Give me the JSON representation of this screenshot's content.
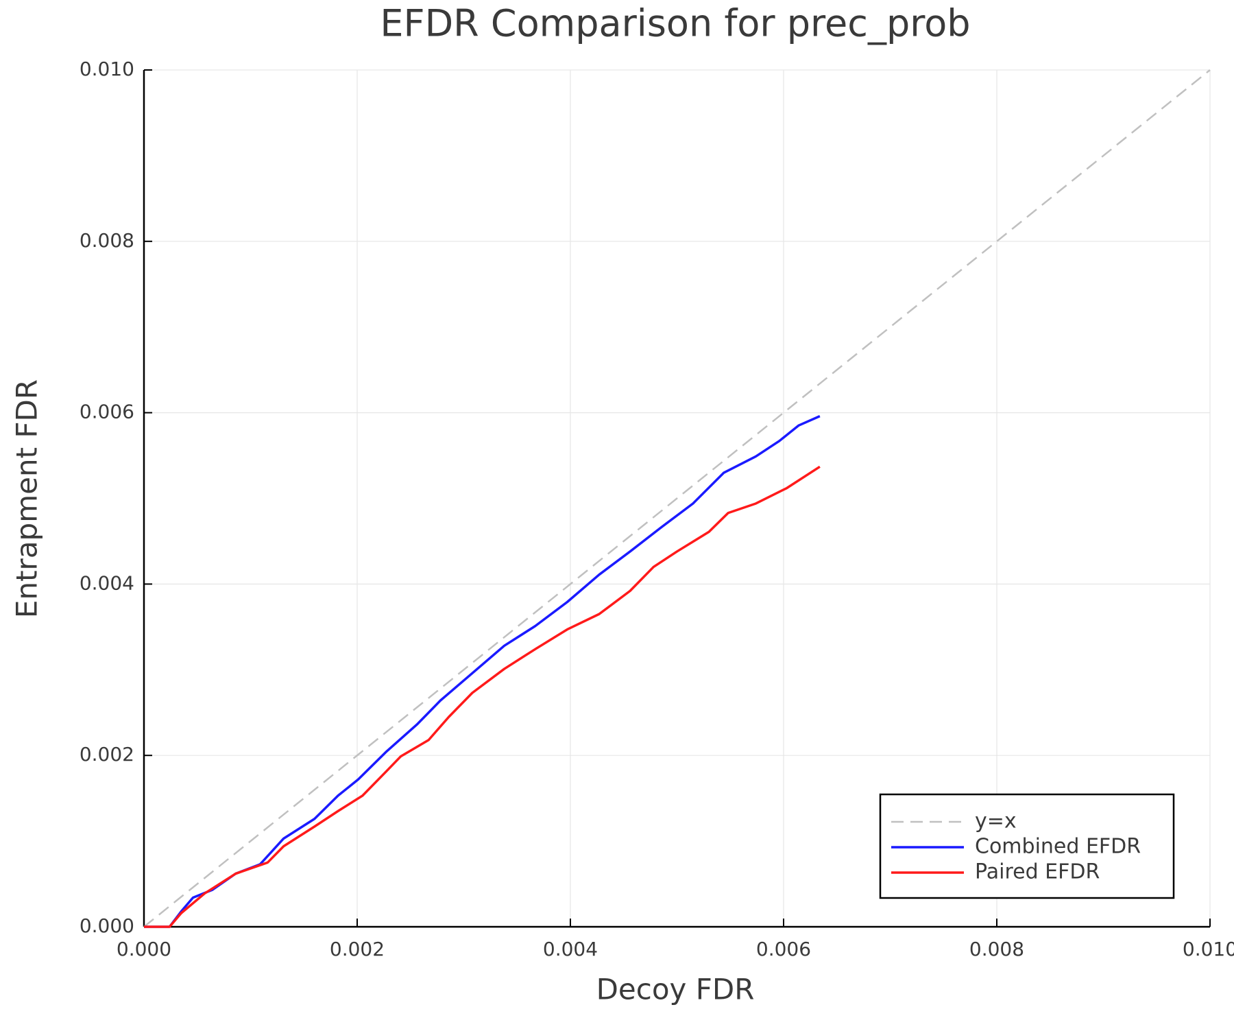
{
  "chart_data": {
    "type": "line",
    "title": "EFDR Comparison for prec_prob",
    "x_label": "Decoy FDR",
    "y_label": "Entrapment FDR",
    "xlim": [
      0,
      0.01
    ],
    "ylim": [
      0,
      0.01
    ],
    "xticks": [
      {
        "value": 0,
        "label": "0.000"
      },
      {
        "value": 0.002,
        "label": "0.002"
      },
      {
        "value": 0.004,
        "label": "0.004"
      },
      {
        "value": 0.006,
        "label": "0.006"
      },
      {
        "value": 0.008,
        "label": "0.008"
      },
      {
        "value": 0.01,
        "label": "0.010"
      }
    ],
    "yticks": [
      {
        "value": 0,
        "label": "0.000"
      },
      {
        "value": 0.002,
        "label": "0.002"
      },
      {
        "value": 0.004,
        "label": "0.004"
      },
      {
        "value": 0.006,
        "label": "0.006"
      },
      {
        "value": 0.008,
        "label": "0.008"
      },
      {
        "value": 0.01,
        "label": "0.010"
      }
    ],
    "grid": true,
    "legend": "bottom-right",
    "series": [
      {
        "name": "y=x",
        "color": "#c0c0c0",
        "style": "dashed",
        "x": [
          0,
          0.01
        ],
        "values": [
          0,
          0.01
        ]
      },
      {
        "name": "Combined EFDR",
        "color": "#1a1aff",
        "style": "solid",
        "x": [
          0,
          0.00024,
          0.00035,
          0.00046,
          0.00064,
          0.00086,
          0.00109,
          0.00131,
          0.0016,
          0.00182,
          0.00201,
          0.00227,
          0.00256,
          0.00278,
          0.00308,
          0.00338,
          0.00367,
          0.00397,
          0.00427,
          0.00456,
          0.00485,
          0.00515,
          0.00544,
          0.00574,
          0.00596,
          0.00614,
          0.00634
        ],
        "values": [
          0,
          0,
          0.00018,
          0.00034,
          0.00043,
          0.00062,
          0.00073,
          0.00103,
          0.00126,
          0.00153,
          0.00172,
          0.00204,
          0.00236,
          0.00264,
          0.00296,
          0.00328,
          0.00351,
          0.00379,
          0.00411,
          0.00438,
          0.00466,
          0.00494,
          0.0053,
          0.00549,
          0.00567,
          0.00585,
          0.00596
        ]
      },
      {
        "name": "Paired EFDR",
        "color": "#ff1a1a",
        "style": "solid",
        "x": [
          0,
          0.00024,
          0.00035,
          0.00057,
          0.00086,
          0.00116,
          0.00131,
          0.0016,
          0.00182,
          0.00205,
          0.00227,
          0.00241,
          0.00267,
          0.00286,
          0.00308,
          0.00338,
          0.00367,
          0.00397,
          0.00427,
          0.00456,
          0.00478,
          0.005,
          0.0053,
          0.00548,
          0.00574,
          0.00603,
          0.00634
        ],
        "values": [
          0,
          0,
          0.00016,
          0.00039,
          0.00062,
          0.00075,
          0.00094,
          0.00117,
          0.00135,
          0.00153,
          0.00181,
          0.00199,
          0.00218,
          0.00245,
          0.00273,
          0.00301,
          0.00324,
          0.00347,
          0.00365,
          0.00392,
          0.0042,
          0.00438,
          0.00461,
          0.00483,
          0.00494,
          0.00512,
          0.00537
        ]
      }
    ]
  }
}
